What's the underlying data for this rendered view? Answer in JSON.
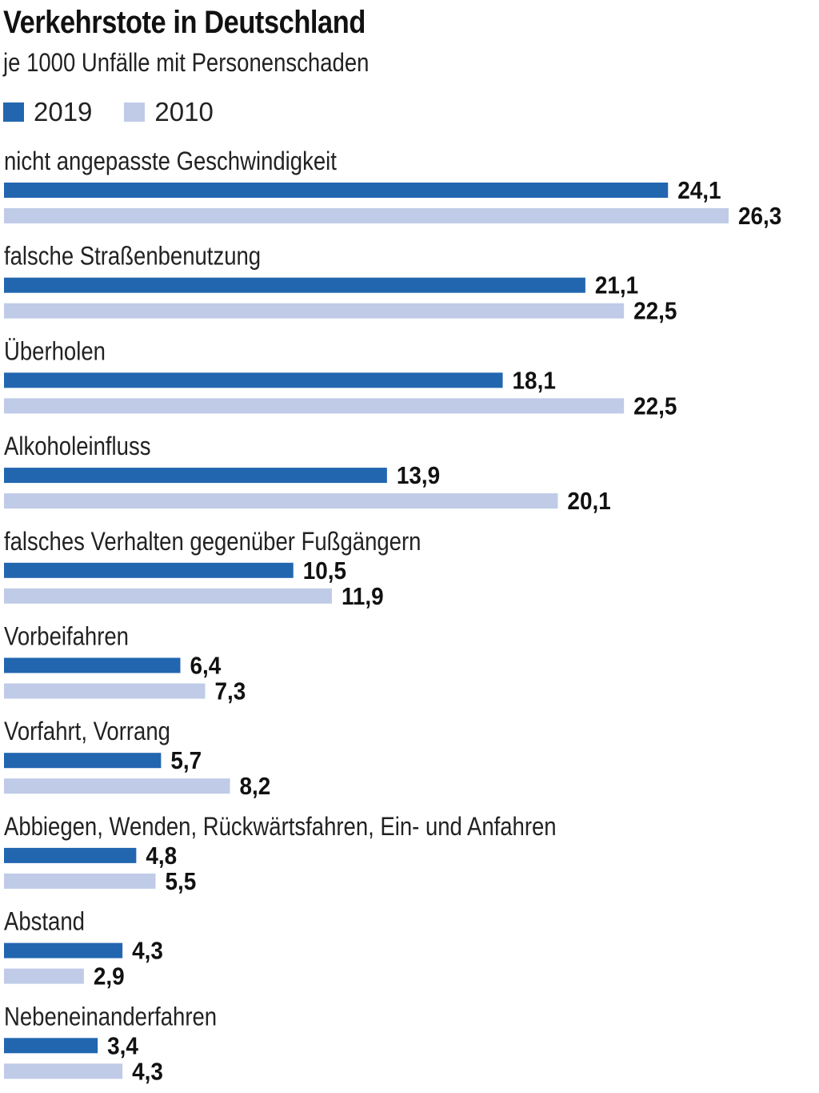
{
  "chart_data": {
    "type": "bar",
    "orientation": "horizontal",
    "title": "Verkehrstote in Deutschland",
    "subtitle": "je 1000 Unfälle mit Personenschaden",
    "legend_position": "top-left",
    "grid": false,
    "xlim": [
      0,
      27
    ],
    "categories": [
      "nicht angepasste Geschwindigkeit",
      "falsche Straßenbenutzung",
      "Überholen",
      "Alkoholeinfluss",
      "falsches Verhalten gegenüber Fußgängern",
      "Vorbeifahren",
      "Vorfahrt, Vorrang",
      "Abbiegen, Wenden, Rückwärtsfahren, Ein- und Anfahren",
      "Abstand",
      "Nebeneinanderfahren"
    ],
    "series": [
      {
        "name": "2019",
        "color": "#2266b0",
        "values": [
          24.1,
          21.1,
          18.1,
          13.9,
          10.5,
          6.4,
          5.7,
          4.8,
          4.3,
          3.4
        ],
        "labels": [
          "24,1",
          "21,1",
          "18,1",
          "13,9",
          "10,5",
          "6,4",
          "5,7",
          "4,8",
          "4,3",
          "3,4"
        ]
      },
      {
        "name": "2010",
        "color": "#bfcbe7",
        "values": [
          26.3,
          22.5,
          22.5,
          20.1,
          11.9,
          7.3,
          8.2,
          5.5,
          2.9,
          4.3
        ],
        "labels": [
          "26,3",
          "22,5",
          "22,5",
          "20,1",
          "11,9",
          "7,3",
          "8,2",
          "5,5",
          "2,9",
          "4,3"
        ]
      }
    ]
  }
}
